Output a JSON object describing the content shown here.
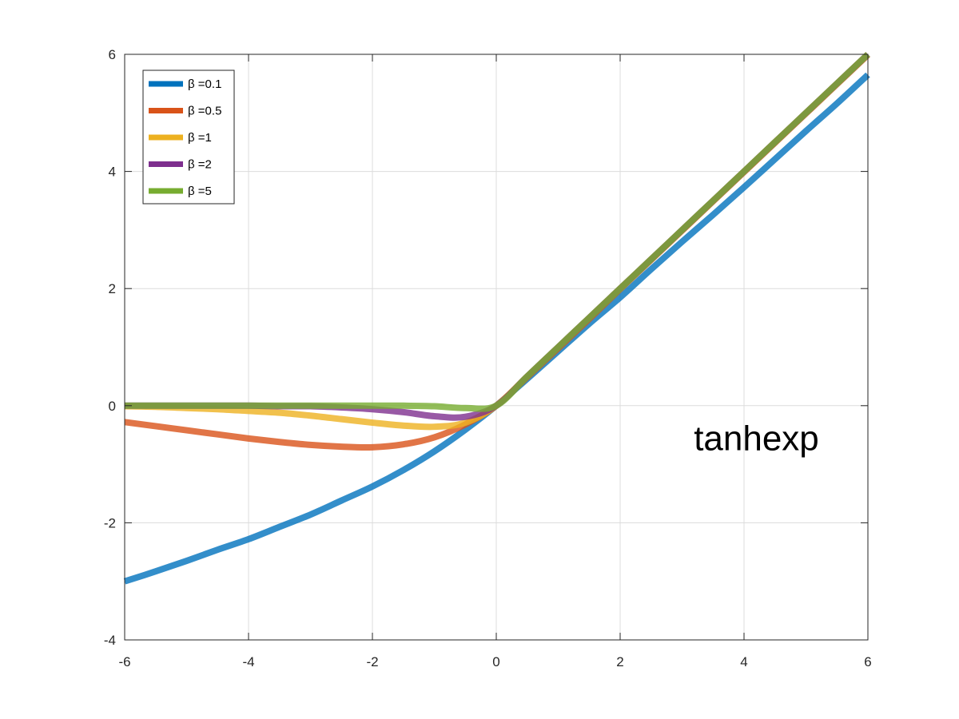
{
  "chart_data": {
    "type": "line",
    "title": "",
    "xlabel": "",
    "ylabel": "",
    "xlim": [
      -6,
      6
    ],
    "ylim": [
      -4,
      6
    ],
    "x_ticks": [
      "-6",
      "-4",
      "-2",
      "0",
      "2",
      "4",
      "6"
    ],
    "y_ticks": [
      "-4",
      "-2",
      "0",
      "2",
      "4",
      "6"
    ],
    "grid": true,
    "legend_position": "top-left",
    "annotation": {
      "text": "tanhexp",
      "x": 4.2,
      "y": -0.65
    },
    "x": [
      -6,
      -5.5,
      -5,
      -4.5,
      -4,
      -3.5,
      -3,
      -2.5,
      -2,
      -1.5,
      -1,
      -0.5,
      0,
      0.5,
      1,
      1.5,
      2,
      2.5,
      3,
      3.5,
      4,
      4.5,
      5,
      5.5,
      6
    ],
    "series": [
      {
        "name": "β =0.1",
        "color": "#0072BD",
        "values": [
          -3.0,
          -2.83,
          -2.65,
          -2.46,
          -2.28,
          -2.07,
          -1.86,
          -1.62,
          -1.38,
          -1.1,
          -0.78,
          -0.41,
          0.0,
          0.46,
          0.93,
          1.4,
          1.85,
          2.33,
          2.8,
          3.26,
          3.73,
          4.21,
          4.69,
          5.16,
          5.65
        ]
      },
      {
        "name": "β =0.5",
        "color": "#D95319",
        "values": [
          -0.28,
          -0.35,
          -0.42,
          -0.49,
          -0.56,
          -0.62,
          -0.67,
          -0.7,
          -0.71,
          -0.66,
          -0.54,
          -0.32,
          0.0,
          0.49,
          0.98,
          1.48,
          1.99,
          2.49,
          2.99,
          3.49,
          3.99,
          4.49,
          4.99,
          5.49,
          5.99
        ]
      },
      {
        "name": "β =1",
        "color": "#EDB120",
        "values": [
          -0.01,
          -0.02,
          -0.04,
          -0.06,
          -0.09,
          -0.12,
          -0.17,
          -0.23,
          -0.29,
          -0.34,
          -0.36,
          -0.29,
          0.0,
          0.5,
          1.0,
          1.5,
          2.0,
          2.5,
          3.0,
          3.5,
          4.0,
          4.5,
          5.0,
          5.5,
          6.0
        ]
      },
      {
        "name": "β =2",
        "color": "#7E2F8E",
        "values": [
          0.0,
          0.0,
          0.0,
          0.0,
          0.0,
          -0.01,
          -0.01,
          -0.03,
          -0.06,
          -0.11,
          -0.18,
          -0.19,
          0.0,
          0.5,
          1.0,
          1.5,
          2.0,
          2.5,
          3.0,
          3.5,
          4.0,
          4.5,
          5.0,
          5.5,
          6.0
        ]
      },
      {
        "name": "β =5",
        "color": "#77AC30",
        "values": [
          0.0,
          0.0,
          0.0,
          0.0,
          0.0,
          0.0,
          0.0,
          0.0,
          0.0,
          0.0,
          -0.01,
          -0.04,
          0.0,
          0.5,
          1.0,
          1.5,
          2.0,
          2.5,
          3.0,
          3.5,
          4.0,
          4.5,
          5.0,
          5.5,
          6.0
        ]
      }
    ]
  }
}
